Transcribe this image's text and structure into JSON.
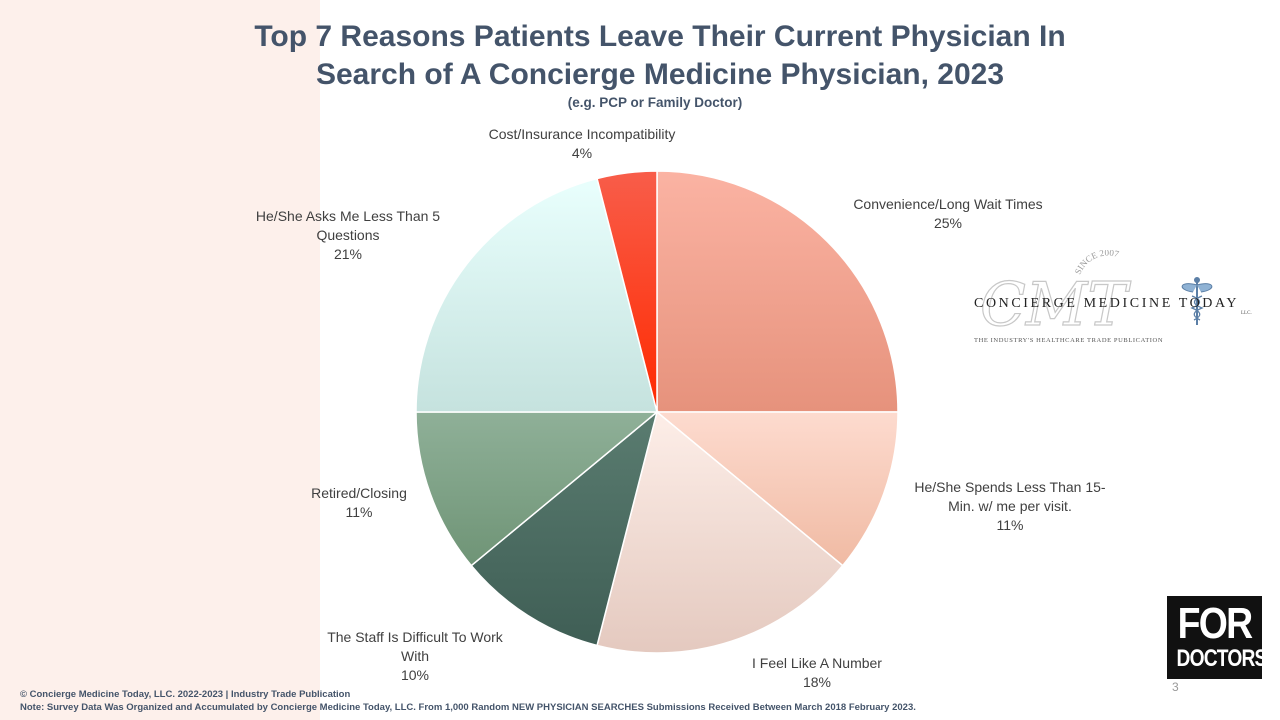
{
  "title_line1": "Top 7 Reasons Patients Leave Their Current Physician In",
  "title_line2": "Search of A Concierge Medicine Physician, 2023",
  "subtitle": "(e.g. PCP or Family Doctor)",
  "chart_data": {
    "type": "pie",
    "title": "Top 7 Reasons Patients Leave Their Current Physician In Search of A Concierge Medicine Physician, 2023",
    "subtitle": "(e.g. PCP or Family Doctor)",
    "slices": [
      {
        "label_lines": [
          "Convenience/Long Wait Times"
        ],
        "value": 25,
        "value_label": "25%",
        "color_light": "#fbb3a3",
        "color_dark": "#e6927c"
      },
      {
        "label_lines": [
          "He/She Spends Less Than 15-",
          "Min. w/ me per visit."
        ],
        "value": 11,
        "value_label": "11%",
        "color_light": "#fddbcf",
        "color_dark": "#f0baa3"
      },
      {
        "label_lines": [
          "I Feel Like A Number"
        ],
        "value": 18,
        "value_label": "18%",
        "color_light": "#fdeee8",
        "color_dark": "#e4c9bf"
      },
      {
        "label_lines": [
          "The Staff Is Difficult To Work",
          "With"
        ],
        "value": 10,
        "value_label": "10%",
        "color_light": "#5a7c70",
        "color_dark": "#3f5e55"
      },
      {
        "label_lines": [
          "Retired/Closing"
        ],
        "value": 11,
        "value_label": "11%",
        "color_light": "#8fb098",
        "color_dark": "#6f9476"
      },
      {
        "label_lines": [
          "He/She Asks Me Less Than 5",
          "Questions"
        ],
        "value": 21,
        "value_label": "21%",
        "color_light": "#e9fffd",
        "color_dark": "#c5e2de"
      },
      {
        "label_lines": [
          "Cost/Insurance Incompatibility"
        ],
        "value": 4,
        "value_label": "4%",
        "color_light": "#f85d4a",
        "color_dark": "#ff2a00"
      }
    ],
    "start_angle_deg": 0,
    "direction": "clockwise",
    "legend": "none"
  },
  "logo": {
    "name": "CONCIERGE MEDICINE TODAY",
    "llc": "LLC.",
    "tagline": "THE INDUSTRY'S HEALTHCARE TRADE PUBLICATION",
    "since": "SINCE 2007",
    "monogram": "CMT"
  },
  "badge": {
    "line1": "FOR",
    "line2": "DOCTORS"
  },
  "page_number": "3",
  "footer_line1": "© Concierge Medicine Today, LLC. 2022-2023 | Industry Trade Publication",
  "footer_line2": "Note: Survey Data Was Organized and Accumulated by Concierge Medicine Today, LLC. From 1,000 Random NEW PHYSICIAN SEARCHES Submissions Received Between March 2018 February 2023."
}
